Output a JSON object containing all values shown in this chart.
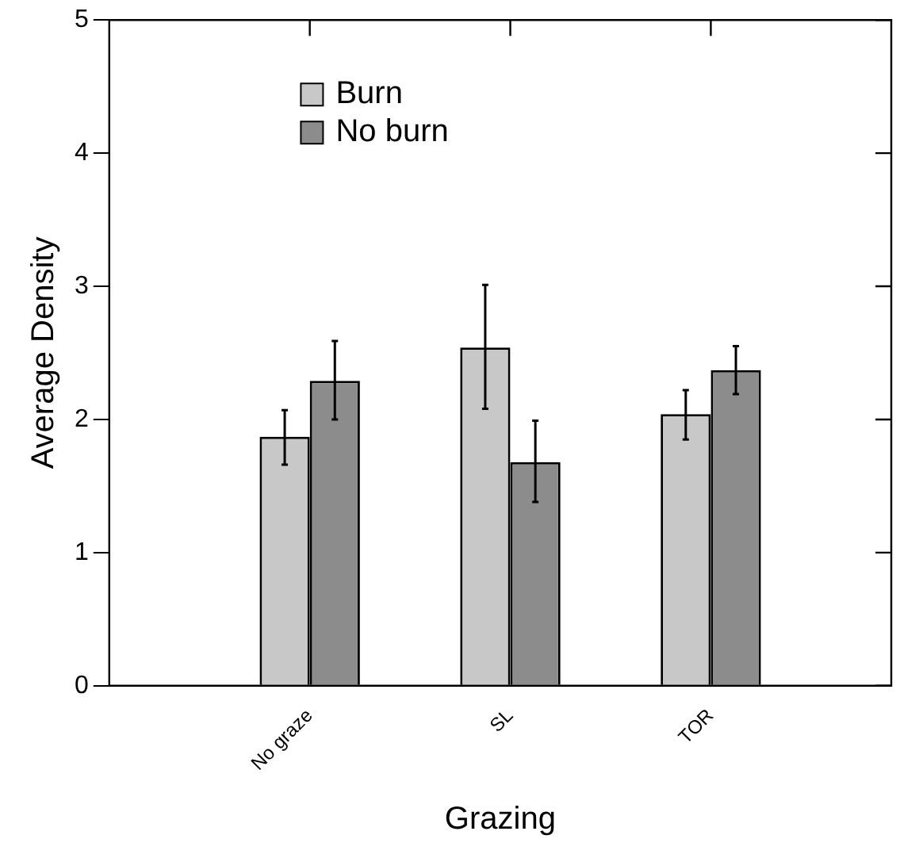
{
  "chart_data": {
    "type": "bar",
    "xlabel": "Grazing",
    "ylabel": "Average Density",
    "categories": [
      "No graze",
      "SL",
      "TOR"
    ],
    "series": [
      {
        "name": "Burn",
        "color": "#c8c8c8",
        "values": [
          1.87,
          2.54,
          2.04
        ],
        "errors": [
          [
            1.66,
            2.07
          ],
          [
            2.08,
            3.01
          ],
          [
            1.85,
            2.22
          ]
        ]
      },
      {
        "name": "No burn",
        "color": "#8c8c8c",
        "values": [
          2.29,
          1.68,
          2.37
        ],
        "errors": [
          [
            2.0,
            2.59
          ],
          [
            1.38,
            1.99
          ],
          [
            2.19,
            2.55
          ]
        ]
      }
    ],
    "ylim": [
      0,
      5
    ],
    "yticks": [
      0,
      1,
      2,
      3,
      4,
      5
    ],
    "grid": false,
    "legend": "top left"
  }
}
